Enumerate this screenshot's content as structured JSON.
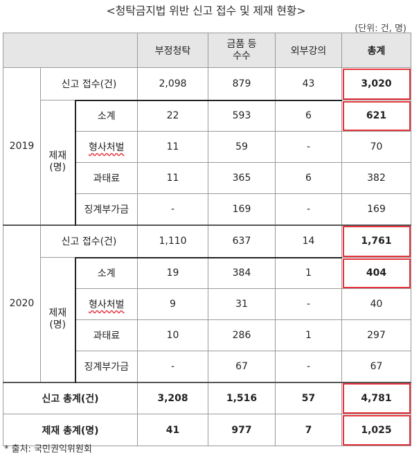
{
  "title": "<청탁금지법 위반 신고 접수 및 제재 현황>",
  "unit": "(단위: 건, 명)",
  "headers": [
    "부정청탁",
    "금품 등\n수수",
    "외부강의",
    "총계"
  ],
  "labels": {
    "report": "신고 접수(건)",
    "sanction": "제재\n(명)",
    "subtotal": "소계",
    "criminal": "형사처벌",
    "fine": "과태료",
    "discipline": "징계부가금",
    "report_total": "신고 총계(건)",
    "sanction_total": "제재 총계(명)"
  },
  "years": [
    {
      "year": "2019",
      "report": [
        "2,098",
        "879",
        "43",
        "3,020"
      ],
      "subtotal": [
        "22",
        "593",
        "6",
        "621"
      ],
      "criminal": [
        "11",
        "59",
        "-",
        "70"
      ],
      "fine": [
        "11",
        "365",
        "6",
        "382"
      ],
      "discipline": [
        "-",
        "169",
        "-",
        "169"
      ]
    },
    {
      "year": "2020",
      "report": [
        "1,110",
        "637",
        "14",
        "1,761"
      ],
      "subtotal": [
        "19",
        "384",
        "1",
        "404"
      ],
      "criminal": [
        "9",
        "31",
        "-",
        "40"
      ],
      "fine": [
        "10",
        "286",
        "1",
        "297"
      ],
      "discipline": [
        "-",
        "67",
        "-",
        "67"
      ]
    }
  ],
  "report_total": [
    "3,208",
    "1,516",
    "57",
    "4,781"
  ],
  "sanction_total": [
    "41",
    "977",
    "7",
    "1,025"
  ],
  "source": "* 출처: 국민권익위원회",
  "highlight_color": "#e5323b"
}
